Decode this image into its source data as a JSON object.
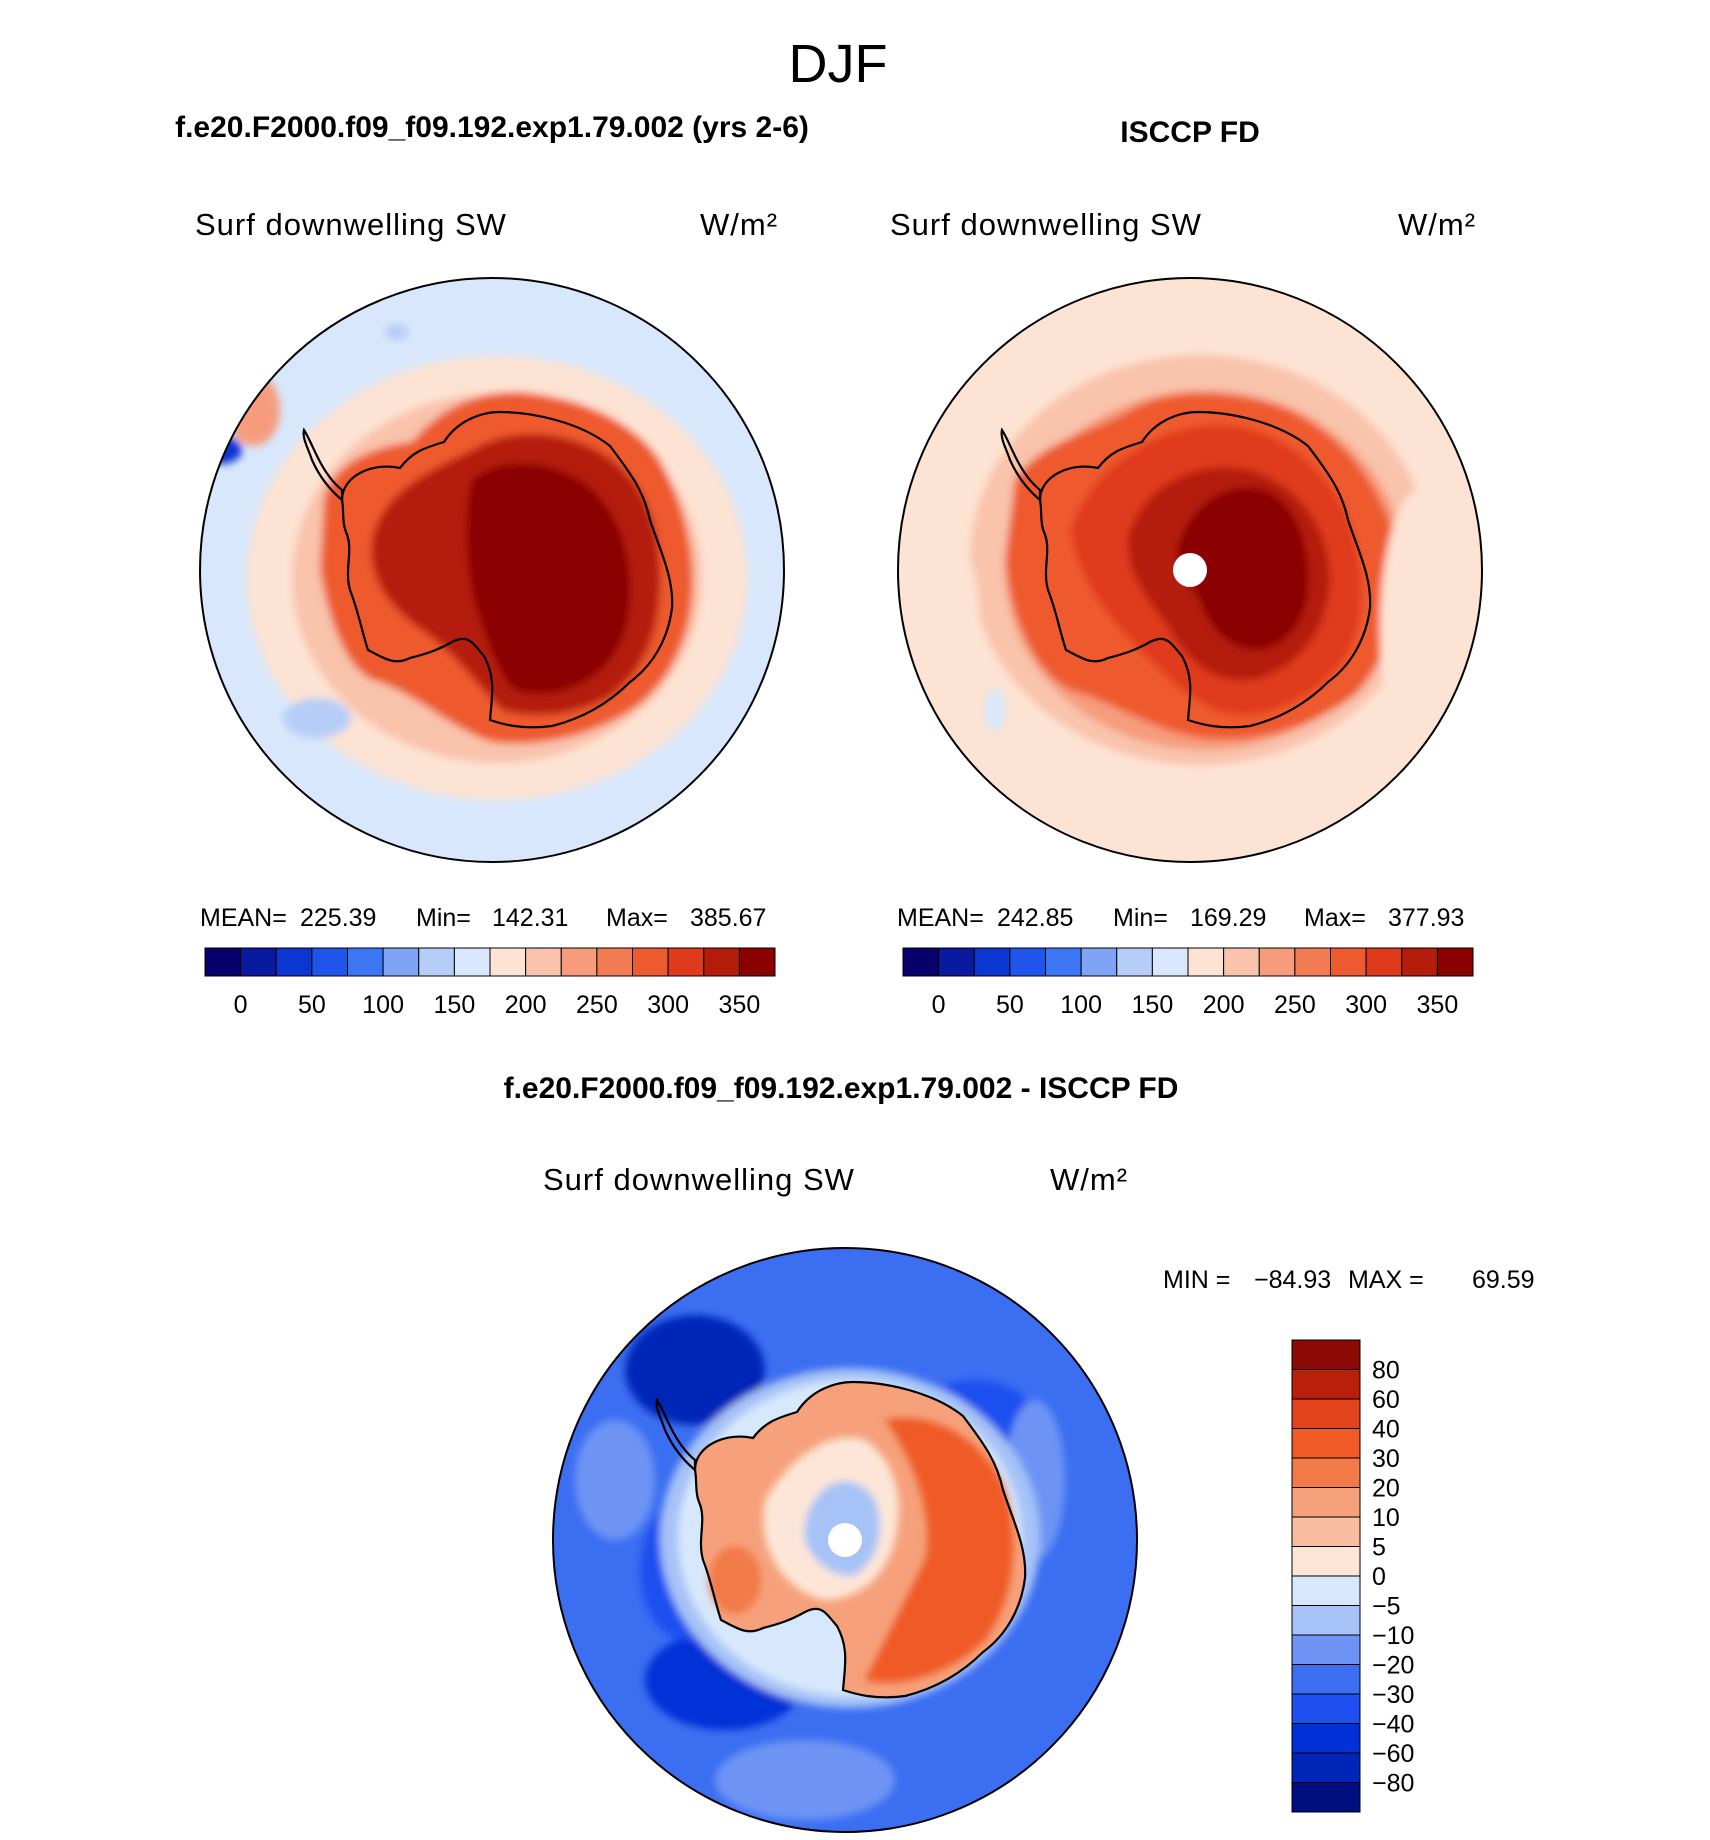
{
  "figure": {
    "season": "DJF",
    "model_title": "f.e20.F2000.f09_f09.192.exp1.79.002 (yrs 2-6)",
    "obs_title": "ISCCP FD",
    "diff_title": "f.e20.F2000.f09_f09.192.exp1.79.002 - ISCCP FD"
  },
  "colors": {
    "abs": [
      "#08006b",
      "#0a1aa0",
      "#0c36d2",
      "#1f55ec",
      "#3d76f2",
      "#7fa4f5",
      "#b6cdf7",
      "#d8e7fb",
      "#fde3d3",
      "#f9c3ac",
      "#f69c7d",
      "#f17b53",
      "#ee5a2f",
      "#e03a1c",
      "#b41d0c",
      "#8b0000"
    ],
    "diff": [
      "#000f80",
      "#0026b8",
      "#0030d8",
      "#1f4ff0",
      "#3c6ef2",
      "#6d94f4",
      "#a6c2f7",
      "#d7e8fc",
      "#fde6d7",
      "#f9be9f",
      "#f6a17b",
      "#f17a48",
      "#ef5a26",
      "#e2431a",
      "#b8200c",
      "#8c0a05"
    ],
    "coast": "#000000"
  },
  "chart_data": [
    {
      "type": "map",
      "projection": "south polar stereographic",
      "title": "Surf downwelling SW",
      "units": "W/m²",
      "stats": {
        "mean_label": "MEAN=",
        "mean": "225.39",
        "min_label": "Min=",
        "min": "142.31",
        "max_label": "Max=",
        "max": "385.67"
      },
      "colorbar": {
        "levels": [
          0,
          25,
          50,
          75,
          100,
          125,
          150,
          175,
          200,
          225,
          250,
          275,
          300,
          325,
          350
        ],
        "tick_labels": [
          "0",
          "50",
          "100",
          "150",
          "200",
          "250",
          "300",
          "350"
        ]
      }
    },
    {
      "type": "map",
      "projection": "south polar stereographic",
      "title": "Surf downwelling SW",
      "units": "W/m²",
      "stats": {
        "mean_label": "MEAN=",
        "mean": "242.85",
        "min_label": "Min=",
        "min": "169.29",
        "max_label": "Max=",
        "max": "377.93"
      },
      "colorbar": {
        "levels": [
          0,
          25,
          50,
          75,
          100,
          125,
          150,
          175,
          200,
          225,
          250,
          275,
          300,
          325,
          350
        ],
        "tick_labels": [
          "0",
          "50",
          "100",
          "150",
          "200",
          "250",
          "300",
          "350"
        ]
      }
    },
    {
      "type": "map",
      "projection": "south polar stereographic",
      "title": "Surf downwelling SW",
      "units": "W/m²",
      "stats": {
        "min_label": "MIN =",
        "min": "−84.93",
        "max_label": "MAX =",
        "max": "69.59"
      },
      "colorbar": {
        "levels": [
          80,
          60,
          40,
          30,
          20,
          10,
          5,
          0,
          -5,
          -10,
          -20,
          -30,
          -40,
          -60,
          -80
        ],
        "tick_labels": [
          "80",
          "60",
          "40",
          "30",
          "20",
          "10",
          "5",
          "0",
          "−5",
          "−10",
          "−20",
          "−30",
          "−40",
          "−60",
          "−80"
        ]
      }
    }
  ]
}
